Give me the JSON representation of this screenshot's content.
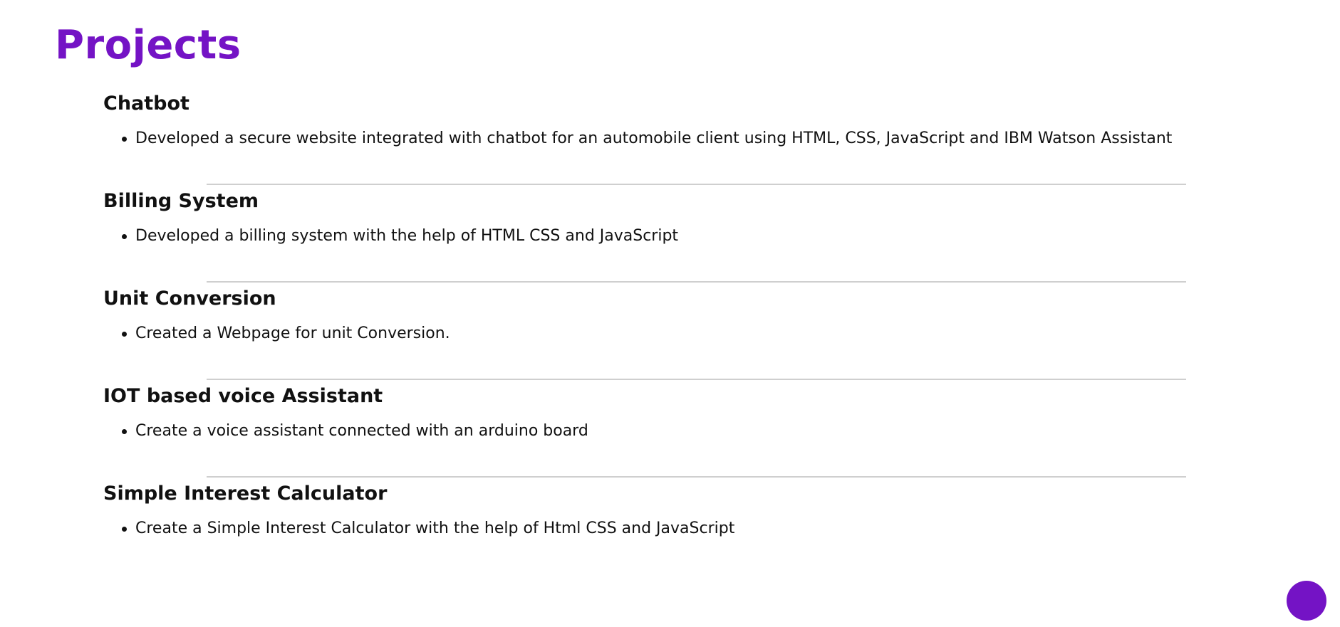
{
  "page": {
    "title": "Projects",
    "accent_color": "#7413c5"
  },
  "projects": [
    {
      "title": "Chatbot",
      "points": [
        "Developed a secure website integrated with chatbot for an automobile client using HTML, CSS, JavaScript and IBM Watson Assistant"
      ]
    },
    {
      "title": "Billing System",
      "points": [
        "Developed a billing system with the help of HTML CSS and JavaScript"
      ]
    },
    {
      "title": "Unit Conversion",
      "points": [
        "Created a Webpage for unit Conversion."
      ]
    },
    {
      "title": "IOT based voice Assistant",
      "points": [
        "Create a voice assistant connected with an arduino board"
      ]
    },
    {
      "title": "Simple Interest Calculator",
      "points": [
        "Create a Simple Interest Calculator with the help of Html CSS and JavaScript"
      ]
    }
  ],
  "floating_button": {
    "icon": "circle-icon",
    "color": "#7413c5"
  }
}
